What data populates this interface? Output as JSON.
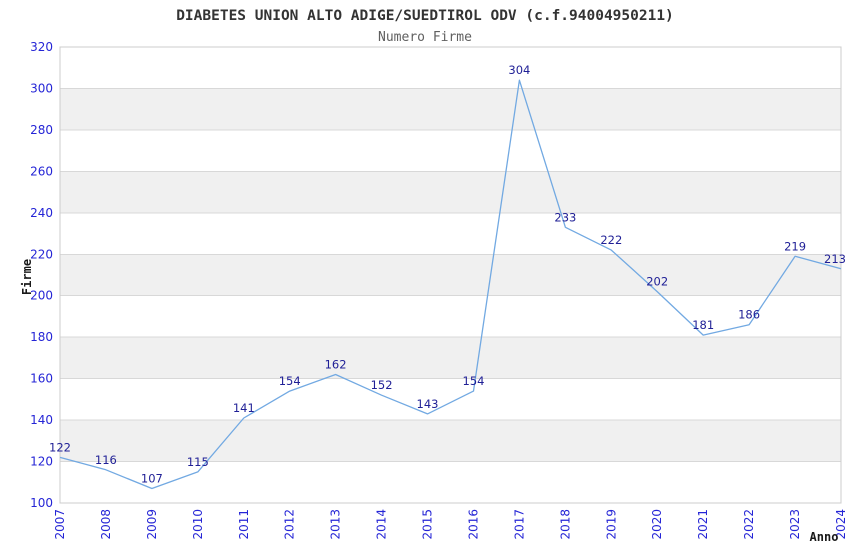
{
  "chart_data": {
    "type": "line",
    "title": "DIABETES UNION ALTO ADIGE/SUEDTIROL ODV (c.f.94004950211)",
    "subtitle": "Numero Firme",
    "xlabel": "Anno",
    "ylabel": "Firme",
    "x": [
      2007,
      2008,
      2009,
      2010,
      2011,
      2012,
      2013,
      2014,
      2015,
      2016,
      2017,
      2018,
      2019,
      2020,
      2021,
      2022,
      2023,
      2024
    ],
    "values": [
      122,
      116,
      107,
      115,
      141,
      154,
      162,
      152,
      143,
      154,
      304,
      233,
      222,
      202,
      181,
      186,
      219,
      213
    ],
    "ylim": [
      100,
      320
    ],
    "ytick_step": 20,
    "grid": true,
    "legend": "none",
    "band_pattern": "alternating-horizontal",
    "colors": {
      "line": "#72a9e2",
      "data_label": "#1f1f96",
      "tick_label": "#2525d6",
      "band_gray": "#f0f0f0",
      "grid_line": "#d8d8d8",
      "plot_border": "#cccccc",
      "title": "#333333",
      "subtitle": "#606060",
      "axis_title": "#1a1a1a",
      "background": "#ffffff"
    }
  }
}
